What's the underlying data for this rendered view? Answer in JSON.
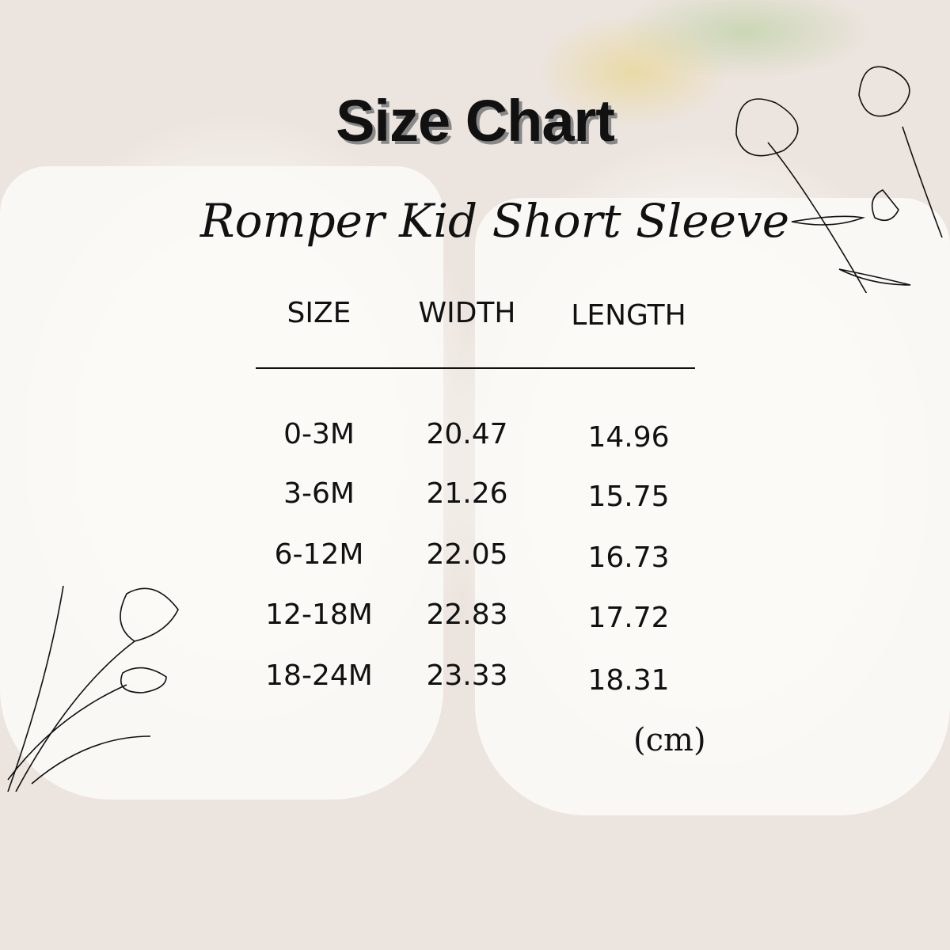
{
  "title": "Size Chart",
  "subtitle": "Romper Kid Short Sleeve",
  "table": {
    "headers": [
      "SIZE",
      "WIDTH",
      "LENGTH"
    ],
    "rows": [
      [
        "0-3M",
        "20.47",
        "14.96"
      ],
      [
        "3-6M",
        "21.26",
        "15.75"
      ],
      [
        "6-12M",
        "22.05",
        "16.73"
      ],
      [
        "12-18M",
        "22.83",
        "17.72"
      ],
      [
        "18-24M",
        "23.33",
        "18.31"
      ]
    ]
  },
  "unit": "(cm)"
}
